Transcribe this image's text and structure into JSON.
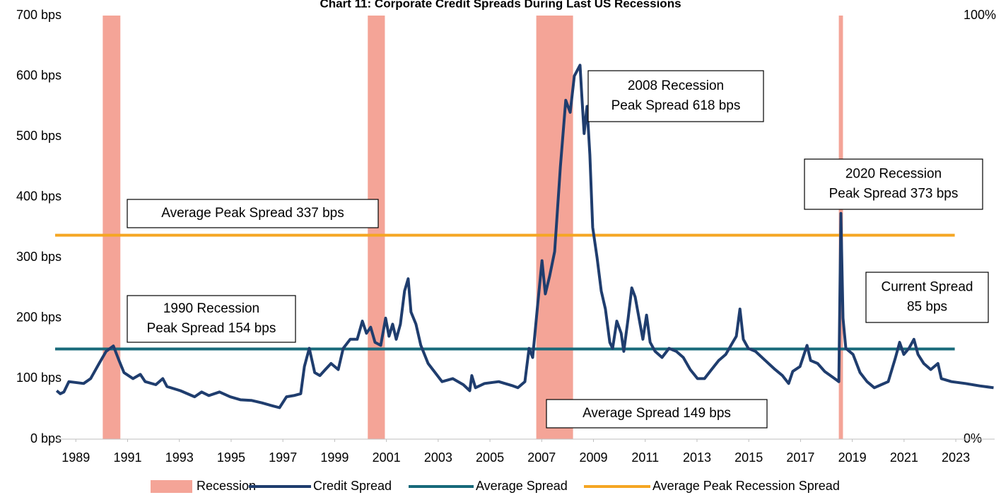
{
  "chart_data": {
    "type": "line",
    "title": "Chart 11: Corporate Credit Spreads During Last US Recessions",
    "xlim": [
      1988.2,
      2024.5
    ],
    "xticks": [
      1989,
      1991,
      1993,
      1995,
      1997,
      1999,
      2001,
      2003,
      2005,
      2007,
      2009,
      2011,
      2013,
      2015,
      2017,
      2019,
      2021,
      2023
    ],
    "ylim": [
      0,
      700
    ],
    "yticks": [
      {
        "value": 0,
        "label": "0 bps"
      },
      {
        "value": 100,
        "label": "100 bps"
      },
      {
        "value": 200,
        "label": "200 bps"
      },
      {
        "value": 300,
        "label": "300 bps"
      },
      {
        "value": 400,
        "label": "400 bps"
      },
      {
        "value": 500,
        "label": "500 bps"
      },
      {
        "value": 600,
        "label": "600 bps"
      },
      {
        "value": 700,
        "label": "700 bps"
      }
    ],
    "y2lim": [
      0,
      100
    ],
    "y2ticks": [
      {
        "value": 0,
        "label": "0%"
      },
      {
        "value": 100,
        "label": "100%"
      }
    ],
    "recessions": {
      "name": "Recession",
      "color": "#f4a497",
      "spans": [
        [
          1990.04,
          1990.72
        ],
        [
          2000.28,
          2000.94
        ],
        [
          2006.79,
          2008.21
        ],
        [
          2018.48,
          2018.64
        ]
      ]
    },
    "series": [
      {
        "name": "Credit Spread",
        "color": "#1f3d6e",
        "x": [
          1988.26,
          1988.4,
          1988.54,
          1988.73,
          1989.3,
          1989.57,
          1989.9,
          1990.17,
          1990.45,
          1990.67,
          1990.86,
          1991.21,
          1991.49,
          1991.68,
          1992.09,
          1992.36,
          1992.52,
          1993.04,
          1993.59,
          1993.86,
          1994.14,
          1994.55,
          1994.96,
          1995.37,
          1995.78,
          1996.19,
          1996.6,
          1996.87,
          1997.14,
          1997.42,
          1997.69,
          1997.83,
          1998.02,
          1998.23,
          1998.43,
          1998.64,
          1998.86,
          1999.14,
          1999.33,
          1999.6,
          1999.87,
          2000.07,
          2000.23,
          2000.39,
          2000.56,
          2000.78,
          2000.97,
          2001.1,
          2001.24,
          2001.38,
          2001.54,
          2001.7,
          2001.84,
          2001.95,
          2002.14,
          2002.33,
          2002.61,
          2002.88,
          2003.15,
          2003.56,
          2003.97,
          2004.22,
          2004.3,
          2004.44,
          2004.79,
          2005.34,
          2005.89,
          2006.08,
          2006.35,
          2006.51,
          2006.65,
          2006.84,
          2007.01,
          2007.14,
          2007.31,
          2007.5,
          2007.72,
          2007.93,
          2008.1,
          2008.26,
          2008.48,
          2008.56,
          2008.64,
          2008.75,
          2008.86,
          2008.97,
          2009.14,
          2009.3,
          2009.46,
          2009.63,
          2009.74,
          2009.9,
          2010.07,
          2010.17,
          2010.34,
          2010.48,
          2010.61,
          2010.78,
          2010.91,
          2011.05,
          2011.19,
          2011.38,
          2011.65,
          2011.92,
          2012.2,
          2012.47,
          2012.74,
          2013.02,
          2013.29,
          2013.56,
          2013.84,
          2014.11,
          2014.38,
          2014.52,
          2014.66,
          2014.79,
          2014.98,
          2015.26,
          2015.64,
          2016.02,
          2016.3,
          2016.54,
          2016.7,
          2016.98,
          2017.25,
          2017.39,
          2017.66,
          2017.93,
          2018.32,
          2018.48,
          2018.56,
          2018.64,
          2018.75,
          2019.03,
          2019.3,
          2019.57,
          2019.85,
          2020.12,
          2020.39,
          2020.67,
          2020.83,
          2020.99,
          2021.19,
          2021.38,
          2021.54,
          2021.76,
          2022.03,
          2022.31,
          2022.44,
          2022.83,
          2023.37,
          2023.92,
          2024.46
        ],
        "values": [
          80,
          75,
          78,
          95,
          92,
          100,
          125,
          145,
          154,
          130,
          110,
          100,
          107,
          95,
          90,
          100,
          87,
          80,
          70,
          78,
          72,
          78,
          70,
          65,
          64,
          60,
          55,
          52,
          70,
          72,
          75,
          120,
          150,
          110,
          105,
          115,
          125,
          115,
          150,
          165,
          165,
          195,
          175,
          185,
          160,
          155,
          200,
          170,
          190,
          165,
          190,
          245,
          265,
          210,
          190,
          155,
          125,
          110,
          95,
          100,
          90,
          80,
          105,
          85,
          92,
          95,
          88,
          85,
          95,
          150,
          135,
          220,
          295,
          240,
          270,
          310,
          450,
          560,
          540,
          600,
          618,
          560,
          505,
          550,
          470,
          350,
          300,
          245,
          215,
          160,
          150,
          195,
          175,
          145,
          200,
          250,
          235,
          195,
          165,
          205,
          160,
          145,
          135,
          150,
          145,
          135,
          115,
          100,
          100,
          115,
          130,
          140,
          160,
          170,
          215,
          165,
          150,
          145,
          130,
          115,
          105,
          92,
          112,
          120,
          155,
          130,
          125,
          112,
          100,
          95,
          373,
          200,
          150,
          140,
          110,
          95,
          85,
          90,
          95,
          135,
          160,
          140,
          150,
          165,
          140,
          125,
          115,
          125,
          100,
          95,
          92,
          88,
          85
        ]
      },
      {
        "name": "Average Spread",
        "color": "#17697a",
        "x": [
          1988.2,
          2022.96
        ],
        "values": [
          149,
          149
        ]
      },
      {
        "name": "Average Peak Recession Spread",
        "color": "#f5a623",
        "x": [
          1988.2,
          2022.96
        ],
        "values": [
          337,
          337
        ]
      }
    ],
    "annotations": [
      {
        "lines": [
          "Average Peak Spread 337 bps"
        ]
      },
      {
        "lines": [
          "1990 Recession",
          "Peak Spread 154 bps"
        ]
      },
      {
        "lines": [
          "2008 Recession",
          "Peak Spread 618 bps"
        ]
      },
      {
        "lines": [
          "2020 Recession",
          "Peak Spread 373 bps"
        ]
      },
      {
        "lines": [
          "Current Spread",
          "85 bps"
        ]
      },
      {
        "lines": [
          "Average  Spread 149 bps"
        ]
      }
    ],
    "legend": "bottom"
  }
}
